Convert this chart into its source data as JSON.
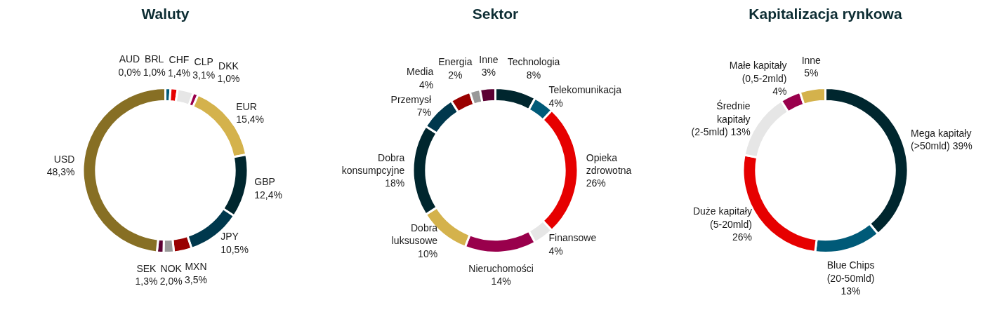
{
  "chart_data": [
    {
      "type": "donut",
      "title": "Waluty",
      "categories": [
        "AUD",
        "BRL",
        "CHF",
        "CLP",
        "DKK",
        "EUR",
        "GBP",
        "JPY",
        "MXN",
        "NOK",
        "SEK",
        "USD"
      ],
      "values": [
        0.0,
        1.0,
        1.4,
        3.1,
        1.0,
        15.4,
        12.4,
        10.5,
        3.5,
        2.0,
        1.3,
        48.3
      ],
      "value_labels": [
        "0,0%",
        "1,0%",
        "1,4%",
        "3,1%",
        "1,0%",
        "15,4%",
        "12,4%",
        "10,5%",
        "3,5%",
        "2,0%",
        "1,3%",
        "48,3%"
      ],
      "colors": [
        "#2b6cb0",
        "#005a78",
        "#e60000",
        "#e6e6e6",
        "#99004c",
        "#d4b24c",
        "#00262e",
        "#00384d",
        "#990000",
        "#999999",
        "#5c0033",
        "#876f24"
      ]
    },
    {
      "type": "donut",
      "title": "Sektor",
      "categories": [
        "Technologia",
        "Telekomunikacja",
        "Opieka zdrowotna",
        "Finansowe",
        "Nieruchomości",
        "Dobra luksusowe",
        "Dobra konsumpcyjne",
        "Przemysł",
        "Media",
        "Energia",
        "Inne"
      ],
      "values": [
        8,
        4,
        26,
        4,
        14,
        10,
        18,
        7,
        4,
        2,
        3
      ],
      "value_labels": [
        "8%",
        "4%",
        "26%",
        "4%",
        "14%",
        "10%",
        "18%",
        "7%",
        "4%",
        "2%",
        "3%"
      ],
      "colors": [
        "#00262e",
        "#005a78",
        "#e60000",
        "#e6e6e6",
        "#99004c",
        "#d4b24c",
        "#00262e",
        "#00384d",
        "#990000",
        "#999999",
        "#5c0033"
      ]
    },
    {
      "type": "donut",
      "title": "Kapitalizacja rynkowa",
      "categories": [
        "Mega kapitały (>50mld)",
        "Blue Chips (20-50mld)",
        "Duże kapitały (5-20mld)",
        "Średnie kapitały (2-5mld)",
        "Małe kapitały (0,5-2mld)",
        "Inne"
      ],
      "values": [
        39,
        13,
        26,
        13,
        4,
        5
      ],
      "value_labels": [
        "39%",
        "13%",
        "26%",
        "13%",
        "4%",
        "5%"
      ],
      "colors": [
        "#00262e",
        "#005a78",
        "#e60000",
        "#e6e6e6",
        "#99004c",
        "#d4b24c"
      ]
    }
  ]
}
